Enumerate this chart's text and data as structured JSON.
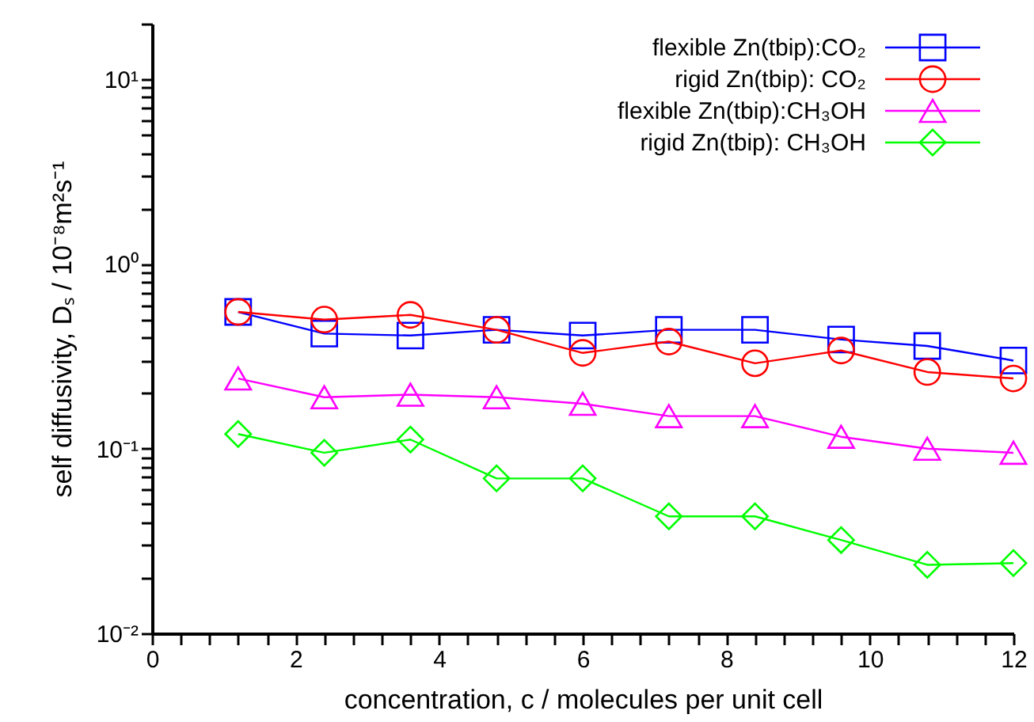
{
  "chart_data": {
    "type": "line",
    "xlabel": "concentration, c / molecules per unit cell",
    "ylabel": "self diffusivity, Dₛ / 10⁻⁸m²s⁻¹",
    "log": "y",
    "legend": "top right",
    "grid": false,
    "x": [
      1.2,
      2.4,
      3.6,
      4.8,
      6,
      7.2,
      8.4,
      9.6,
      10.8,
      12
    ],
    "xlim": [
      0,
      12
    ],
    "xticks": [
      0,
      {
        "value": 0.4,
        "label": null
      },
      {
        "value": 0.8,
        "label": null
      },
      {
        "value": 1.2,
        "label": null
      },
      {
        "value": 1.6,
        "label": null
      },
      2,
      {
        "value": 2.4,
        "label": null
      },
      {
        "value": 2.8,
        "label": null
      },
      {
        "value": 3.2,
        "label": null
      },
      {
        "value": 3.6,
        "label": null
      },
      4,
      {
        "value": 4.4,
        "label": null
      },
      {
        "value": 4.8,
        "label": null
      },
      {
        "value": 5.2,
        "label": null
      },
      {
        "value": 5.6,
        "label": null
      },
      6,
      {
        "value": 6.4,
        "label": null
      },
      {
        "value": 6.8,
        "label": null
      },
      {
        "value": 7.2,
        "label": null
      },
      {
        "value": 7.6,
        "label": null
      },
      8,
      {
        "value": 8.4,
        "label": null
      },
      {
        "value": 8.8,
        "label": null
      },
      {
        "value": 9.2,
        "label": null
      },
      {
        "value": 9.6,
        "label": null
      },
      10,
      {
        "value": 10.4,
        "label": null
      },
      {
        "value": 10.8,
        "label": null
      },
      {
        "value": 11.2,
        "label": null
      },
      {
        "value": 11.6,
        "label": null
      },
      12
    ],
    "ylim": [
      0.01,
      20
    ],
    "yticks": [
      {
        "value": 0.01,
        "label": "10⁻²"
      },
      {
        "value": 0.02,
        "label": null
      },
      {
        "value": 0.03,
        "label": null
      },
      {
        "value": 0.04,
        "label": null
      },
      {
        "value": 0.05,
        "label": null
      },
      {
        "value": 0.06,
        "label": null
      },
      {
        "value": 0.07,
        "label": null
      },
      {
        "value": 0.08,
        "label": null
      },
      {
        "value": 0.09,
        "label": null
      },
      {
        "value": 0.1,
        "label": "10⁻¹"
      },
      {
        "value": 0.2,
        "label": null
      },
      {
        "value": 0.3,
        "label": null
      },
      {
        "value": 0.4,
        "label": null
      },
      {
        "value": 0.5,
        "label": null
      },
      {
        "value": 0.6,
        "label": null
      },
      {
        "value": 0.7,
        "label": null
      },
      {
        "value": 0.8,
        "label": null
      },
      {
        "value": 0.9,
        "label": null
      },
      {
        "value": 1,
        "label": "10⁰"
      },
      {
        "value": 2,
        "label": null
      },
      {
        "value": 3,
        "label": null
      },
      {
        "value": 4,
        "label": null
      },
      {
        "value": 5,
        "label": null
      },
      {
        "value": 6,
        "label": null
      },
      {
        "value": 7,
        "label": null
      },
      {
        "value": 8,
        "label": null
      },
      {
        "value": 9,
        "label": null
      },
      {
        "value": 10,
        "label": "10¹"
      },
      {
        "value": 20,
        "label": null
      }
    ],
    "series": [
      {
        "name": "flexible Zn(tbip):CO₂",
        "color": "#0000ff",
        "marker": "square",
        "values": [
          0.55,
          0.42,
          0.41,
          0.44,
          0.41,
          0.44,
          0.44,
          0.39,
          0.36,
          0.3
        ]
      },
      {
        "name": "rigid Zn(tbip): CO₂",
        "color": "#ff0000",
        "marker": "circle",
        "values": [
          0.55,
          0.5,
          0.53,
          0.44,
          0.33,
          0.38,
          0.29,
          0.34,
          0.26,
          0.24
        ]
      },
      {
        "name": "flexible Zn(tbip):CH₃OH",
        "color": "#ff00ff",
        "marker": "triangle",
        "values": [
          0.24,
          0.19,
          0.196,
          0.19,
          0.175,
          0.15,
          0.15,
          0.116,
          0.1,
          0.095
        ]
      },
      {
        "name": "rigid Zn(tbip): CH₃OH",
        "color": "#00ff00",
        "marker": "diamond",
        "values": [
          0.12,
          0.095,
          0.112,
          0.069,
          0.069,
          0.043,
          0.043,
          0.032,
          0.0235,
          0.024
        ]
      }
    ]
  }
}
